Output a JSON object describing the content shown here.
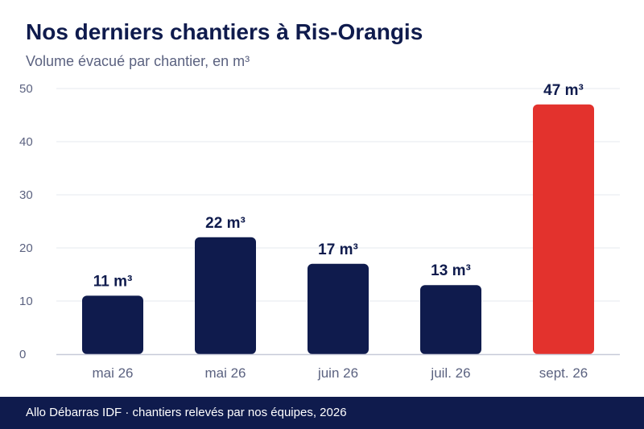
{
  "header": {
    "title": "Nos derniers chantiers à Ris-Orangis",
    "subtitle": "Volume évacué par chantier, en m³"
  },
  "footer": {
    "text": "Allo Débarras IDF · chantiers relevés par nos équipes, 2026"
  },
  "colors": {
    "primary": "#0f1b4d",
    "highlight": "#e3322d",
    "grid": "#e6e8ef",
    "axis": "#c7cad8",
    "tick_text": "#5b6280",
    "label_text": "#0f1b4d"
  },
  "chart_data": {
    "type": "bar",
    "title": "Nos derniers chantiers à Ris-Orangis",
    "subtitle": "Volume évacué par chantier, en m³",
    "categories": [
      "mai 26",
      "mai 26",
      "juin 26",
      "juil. 26",
      "sept. 26"
    ],
    "values": [
      11,
      22,
      17,
      13,
      47
    ],
    "data_labels": [
      "11 m³",
      "22 m³",
      "17 m³",
      "13 m³",
      "47 m³"
    ],
    "highlight_index": 4,
    "xlabel": "",
    "ylabel": "",
    "ylim": [
      0,
      50
    ],
    "yticks": [
      0,
      10,
      20,
      30,
      40,
      50
    ],
    "grid": true,
    "legend": "none"
  }
}
